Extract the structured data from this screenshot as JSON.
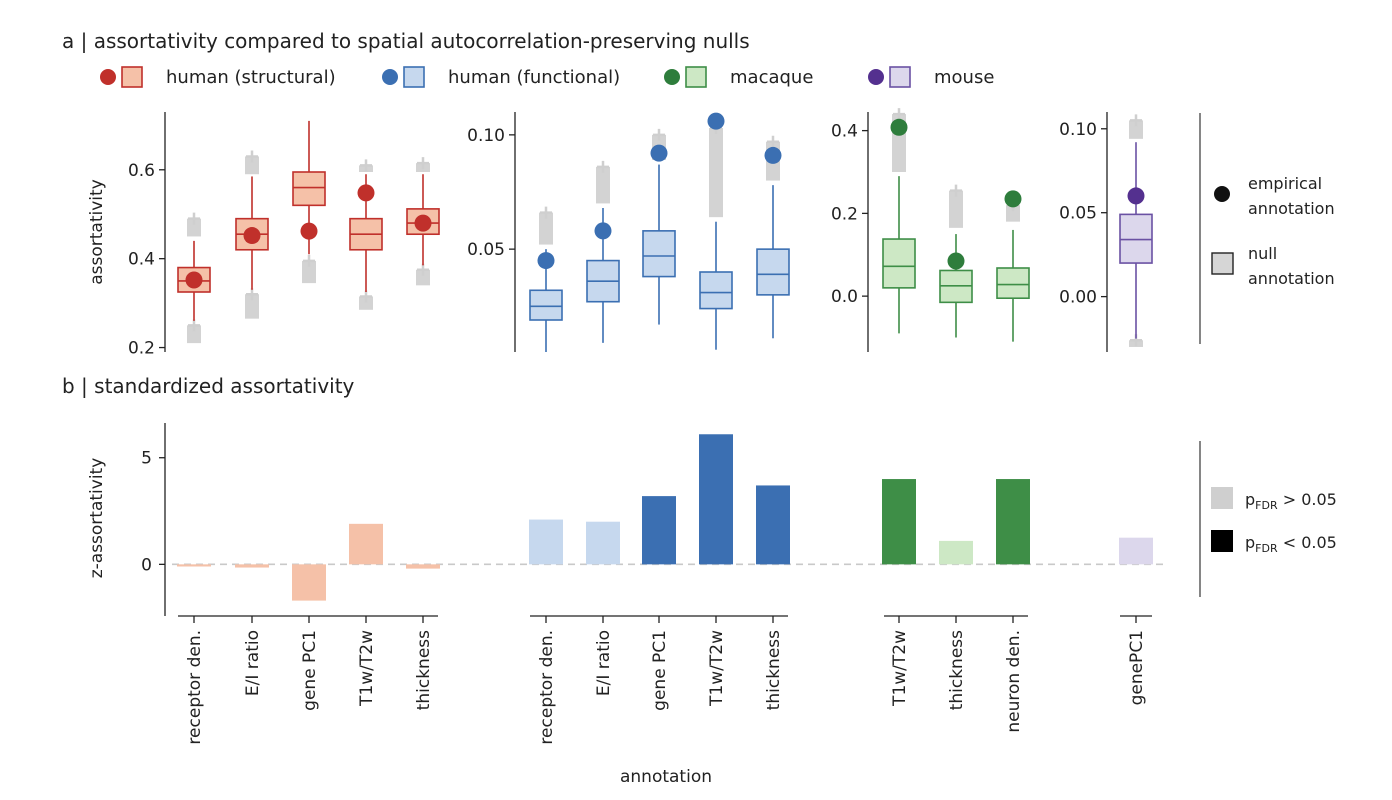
{
  "panel_a_title": "a | assortativity compared to spatial autocorrelation-preserving nulls",
  "panel_b_title": "b | standardized assortativity",
  "legend": [
    {
      "label": "human (structural)",
      "dot": "#c0302b",
      "fill": "#f5c1a8",
      "stroke": "#c0302b"
    },
    {
      "label": "human (functional)",
      "dot": "#3b6fb2",
      "fill": "#c6d8ee",
      "stroke": "#3b6fb2"
    },
    {
      "label": "macaque",
      "dot": "#2e7d3c",
      "fill": "#cde8c5",
      "stroke": "#3e8e47"
    },
    {
      "label": "mouse",
      "dot": "#54308f",
      "fill": "#dcd7ec",
      "stroke": "#6a51a3"
    }
  ],
  "side_legend_a": {
    "empirical": [
      "empirical",
      "annotation"
    ],
    "null": [
      "null",
      "annotation"
    ]
  },
  "side_legend_b": {
    "ns_text": "p_FDR > 0.05",
    "sig_text": "p_FDR < 0.05",
    "ns_parts": [
      "p",
      "FDR",
      " > 0.05"
    ],
    "sig_parts": [
      "p",
      "FDR",
      " < 0.05"
    ]
  },
  "ylabel_a": "assortativity",
  "ylabel_b": "z-assortativity",
  "xlabel": "annotation",
  "chart_data": [
    {
      "type": "box",
      "group": "human (structural)",
      "color_key": 0,
      "ylim": [
        0.19,
        0.73
      ],
      "yticks": [
        0.2,
        0.4,
        0.6
      ],
      "ytick_labels": [
        "0.2",
        "0.4",
        "0.6"
      ],
      "categories": [
        "receptor den.",
        "E/I ratio",
        "gene PC1",
        "T1w/T2w",
        "thickness"
      ],
      "boxes": [
        {
          "whislo": 0.26,
          "q1": 0.325,
          "med": 0.35,
          "q3": 0.38,
          "whishi": 0.44,
          "fliers_lo": [
            0.21,
            0.25
          ],
          "fliers_hi": [
            0.45,
            0.49
          ],
          "empirical": 0.352
        },
        {
          "whislo": 0.33,
          "q1": 0.42,
          "med": 0.455,
          "q3": 0.49,
          "whishi": 0.585,
          "fliers_lo": [
            0.265,
            0.32
          ],
          "fliers_hi": [
            0.59,
            0.63
          ],
          "empirical": 0.452
        },
        {
          "whislo": 0.41,
          "q1": 0.52,
          "med": 0.56,
          "q3": 0.595,
          "whishi": 0.71,
          "fliers_lo": [
            0.345,
            0.395
          ],
          "fliers_hi": [],
          "empirical": 0.462
        },
        {
          "whislo": 0.325,
          "q1": 0.42,
          "med": 0.455,
          "q3": 0.49,
          "whishi": 0.59,
          "fliers_lo": [
            0.285,
            0.315
          ],
          "fliers_hi": [
            0.595,
            0.61
          ],
          "empirical": 0.548
        },
        {
          "whislo": 0.385,
          "q1": 0.455,
          "med": 0.48,
          "q3": 0.512,
          "whishi": 0.59,
          "fliers_lo": [
            0.34,
            0.375
          ],
          "fliers_hi": [
            0.595,
            0.615
          ],
          "empirical": 0.48
        }
      ]
    },
    {
      "type": "box",
      "group": "human (functional)",
      "color_key": 1,
      "ylim": [
        0.005,
        0.11
      ],
      "yticks": [
        0.05,
        0.1
      ],
      "ytick_labels": [
        "0.05",
        "0.10"
      ],
      "categories": [
        "receptor den.",
        "E/I ratio",
        "gene PC1",
        "T1w/T2w",
        "thickness"
      ],
      "boxes": [
        {
          "whislo": 0.005,
          "q1": 0.019,
          "med": 0.025,
          "q3": 0.032,
          "whishi": 0.05,
          "fliers_lo": [],
          "fliers_hi": [
            0.052,
            0.066
          ],
          "empirical": 0.045
        },
        {
          "whislo": 0.009,
          "q1": 0.027,
          "med": 0.036,
          "q3": 0.045,
          "whishi": 0.068,
          "fliers_lo": [],
          "fliers_hi": [
            0.07,
            0.086
          ],
          "empirical": 0.058
        },
        {
          "whislo": 0.017,
          "q1": 0.038,
          "med": 0.047,
          "q3": 0.058,
          "whishi": 0.087,
          "fliers_lo": [],
          "fliers_hi": [
            0.089,
            0.1
          ],
          "empirical": 0.092
        },
        {
          "whislo": 0.006,
          "q1": 0.024,
          "med": 0.031,
          "q3": 0.04,
          "whishi": 0.062,
          "fliers_lo": [],
          "fliers_hi": [
            0.064,
            0.103
          ],
          "empirical": 0.106
        },
        {
          "whislo": 0.011,
          "q1": 0.03,
          "med": 0.039,
          "q3": 0.05,
          "whishi": 0.078,
          "fliers_lo": [],
          "fliers_hi": [
            0.08,
            0.097
          ],
          "empirical": 0.091
        }
      ]
    },
    {
      "type": "box",
      "group": "macaque",
      "color_key": 2,
      "ylim": [
        -0.135,
        0.445
      ],
      "yticks": [
        0.0,
        0.2,
        0.4
      ],
      "ytick_labels": [
        "0.0",
        "0.2",
        "0.4"
      ],
      "categories": [
        "T1w/T2w",
        "thickness",
        "neuron den."
      ],
      "boxes": [
        {
          "whislo": -0.09,
          "q1": 0.02,
          "med": 0.072,
          "q3": 0.138,
          "whishi": 0.29,
          "fliers_lo": [],
          "fliers_hi": [
            0.3,
            0.44
          ],
          "empirical": 0.408
        },
        {
          "whislo": -0.1,
          "q1": -0.015,
          "med": 0.025,
          "q3": 0.062,
          "whishi": 0.15,
          "fliers_lo": [],
          "fliers_hi": [
            0.165,
            0.255
          ],
          "empirical": 0.085
        },
        {
          "whislo": -0.11,
          "q1": -0.005,
          "med": 0.028,
          "q3": 0.068,
          "whishi": 0.16,
          "fliers_lo": [],
          "fliers_hi": [
            0.18,
            0.22
          ],
          "empirical": 0.235
        }
      ]
    },
    {
      "type": "box",
      "group": "mouse",
      "color_key": 3,
      "ylim": [
        -0.033,
        0.11
      ],
      "yticks": [
        0.0,
        0.05,
        0.1
      ],
      "ytick_labels": [
        "0.00",
        "0.05",
        "0.10"
      ],
      "categories": [
        "genePC1"
      ],
      "boxes": [
        {
          "whislo": -0.025,
          "q1": 0.02,
          "med": 0.034,
          "q3": 0.049,
          "whishi": 0.092,
          "fliers_lo": [
            -0.03,
            -0.026
          ],
          "fliers_hi": [
            0.094,
            0.105
          ],
          "empirical": 0.06
        }
      ]
    },
    {
      "type": "bar",
      "ylim": [
        -2.0,
        6.3
      ],
      "yticks": [
        0,
        5
      ],
      "ytick_labels": [
        "0",
        "5"
      ],
      "categories": [
        "receptor den.",
        "E/I ratio",
        "gene PC1",
        "T1w/T2w",
        "thickness",
        "receptor den.",
        "E/I ratio",
        "gene PC1",
        "T1w/T2w",
        "thickness",
        "T1w/T2w",
        "thickness",
        "neuron den.",
        "genePC1"
      ],
      "groups": [
        0,
        0,
        0,
        0,
        0,
        1,
        1,
        1,
        1,
        1,
        2,
        2,
        2,
        3
      ],
      "values": [
        -0.1,
        -0.15,
        -1.7,
        1.9,
        -0.2,
        2.1,
        2.0,
        3.2,
        6.1,
        3.7,
        4.0,
        1.1,
        4.0,
        1.25
      ],
      "significant": [
        false,
        false,
        false,
        false,
        false,
        false,
        false,
        true,
        true,
        true,
        true,
        false,
        true,
        false
      ],
      "sig_colors": [
        "#c0302b",
        "#3b6fb2",
        "#3e8e47",
        "#6a51a3"
      ],
      "ns_colors": [
        "#f5c1a8",
        "#c6d8ee",
        "#cde8c5",
        "#dcd7ec"
      ]
    }
  ]
}
